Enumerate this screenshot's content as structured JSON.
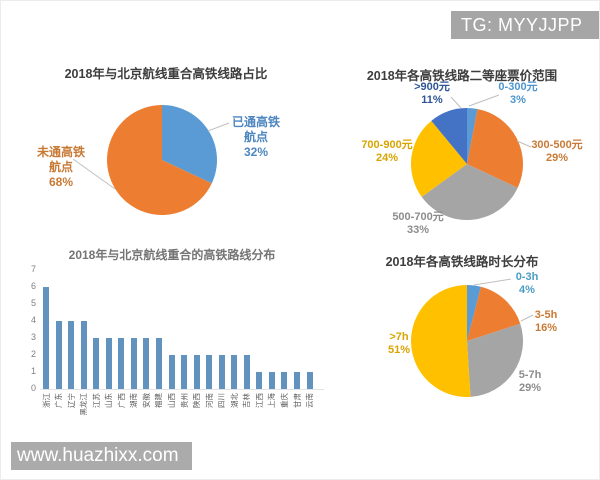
{
  "page": {
    "badge": "TG: MYYJJPP",
    "watermark": "www.huazhixx.com"
  },
  "colors": {
    "blue": "#5B9BD5",
    "orange": "#ED7D31",
    "gray": "#A5A5A5",
    "yellow": "#FFC000",
    "dark_blue": "#4472C4",
    "bar_blue": "#6292BE"
  },
  "chart_data": [
    {
      "id": "overlap-pie",
      "type": "pie",
      "title": "2018年与北京航线重合高铁线路占比",
      "slices": [
        {
          "label": "已通高铁航点",
          "label_lines": [
            "已通高铁",
            "航点"
          ],
          "pct": 32,
          "pct_text": "32%",
          "color": "#5B9BD5",
          "label_color": "#4E86C0"
        },
        {
          "label": "未通高铁航点",
          "label_lines": [
            "未通高铁",
            "航点"
          ],
          "pct": 68,
          "pct_text": "68%",
          "color": "#ED7D31",
          "label_color": "#C87A35"
        }
      ]
    },
    {
      "id": "ticket-price-pie",
      "type": "pie",
      "title": "2018年各高铁线路二等座票价范围",
      "slices": [
        {
          "label": "0-300元",
          "pct": 3,
          "pct_text": "3%",
          "color": "#5B9BD5",
          "label_color": "#4E95CD"
        },
        {
          "label": "300-500元",
          "pct": 29,
          "pct_text": "29%",
          "color": "#ED7D31",
          "label_color": "#C87A35"
        },
        {
          "label": "500-700元",
          "pct": 33,
          "pct_text": "33%",
          "color": "#A5A5A5",
          "label_color": "#8C8C8C"
        },
        {
          "label": "700-900元",
          "pct": 24,
          "pct_text": "24%",
          "color": "#FFC000",
          "label_color": "#D9A400"
        },
        {
          "label": ">900元",
          "pct": 11,
          "pct_text": "11%",
          "color": "#4472C4",
          "label_color": "#2F5597"
        }
      ]
    },
    {
      "id": "route-distribution-bar",
      "type": "bar",
      "title": "2018年与北京航线重合的高铁路线分布",
      "categories": [
        "浙江",
        "广东",
        "辽宁",
        "黑龙江",
        "江苏",
        "山东",
        "广西",
        "湖南",
        "安徽",
        "福建",
        "山西",
        "贵州",
        "陕西",
        "河南",
        "四川",
        "湖北",
        "吉林",
        "江西",
        "上海",
        "重庆",
        "甘肃",
        "云南"
      ],
      "values": [
        6,
        4,
        4,
        4,
        3,
        3,
        3,
        3,
        3,
        3,
        2,
        2,
        2,
        2,
        2,
        2,
        2,
        1,
        1,
        1,
        1,
        1
      ],
      "ylim": [
        0,
        7
      ],
      "yticks": [
        0,
        1,
        2,
        3,
        4,
        5,
        6,
        7
      ],
      "grid": false,
      "bar_color": "#6292BE"
    },
    {
      "id": "duration-pie",
      "type": "pie",
      "title": "2018年各高铁线路时长分布",
      "slices": [
        {
          "label": "0-3h",
          "pct": 4,
          "pct_text": "4%",
          "color": "#5B9BD5",
          "label_color": "#4B9CC4"
        },
        {
          "label": "3-5h",
          "pct": 16,
          "pct_text": "16%",
          "color": "#ED7D31",
          "label_color": "#C87A35"
        },
        {
          "label": "5-7h",
          "pct": 29,
          "pct_text": "29%",
          "color": "#A5A5A5",
          "label_color": "#8C8C8C"
        },
        {
          "label": ">7h",
          "pct": 51,
          "pct_text": "51%",
          "color": "#FFC000",
          "label_color": "#D9A400"
        }
      ]
    }
  ]
}
